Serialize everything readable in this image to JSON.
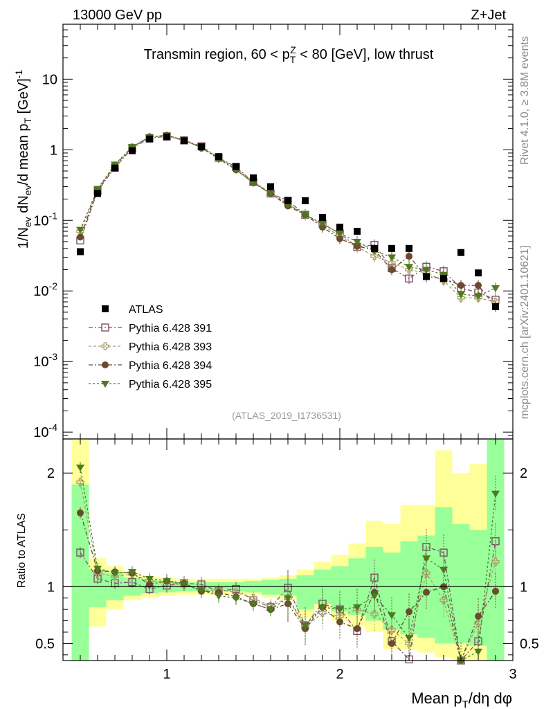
{
  "header": {
    "left": "13000 GeV pp",
    "right": "Z+Jet"
  },
  "side": {
    "rivet": "Rivet 4.1.0, ≥ 3.8M events",
    "mcplots": "mcplots.cern.ch [arXiv:2401.10621]"
  },
  "chart_data": {
    "type": "scatter",
    "title": "Transmin region, 60 < p_T^Z < 80 [GeV], low thrust",
    "analysis_tag": "(ATLAS_2019_I1736531)",
    "xlabel": "Mean p_T/dη dφ",
    "ylabel": "1/N_ev dN_ev/d mean p_T [GeV]^-1",
    "ratio_ylabel": "Ratio to ATLAS",
    "xlim": [
      0.4,
      3.0
    ],
    "ylim_log": [
      8e-05,
      60
    ],
    "ratio_ylim": [
      0.35,
      2.3
    ],
    "x_ticks": [
      "1",
      "2",
      "3"
    ],
    "y_ticks": [
      "10^-4",
      "10^-3",
      "10^-2",
      "10^-1",
      "1",
      "10"
    ],
    "ratio_ticks": [
      "0.5",
      "1",
      "2"
    ],
    "x": [
      0.5,
      0.6,
      0.7,
      0.8,
      0.9,
      1.0,
      1.1,
      1.2,
      1.3,
      1.4,
      1.5,
      1.6,
      1.7,
      1.8,
      1.9,
      2.0,
      2.1,
      2.2,
      2.3,
      2.4,
      2.5,
      2.6,
      2.7,
      2.8,
      2.9
    ],
    "data": {
      "name": "ATLAS",
      "values": [
        0.036,
        0.24,
        0.55,
        0.97,
        1.42,
        1.52,
        1.34,
        1.1,
        0.8,
        0.58,
        0.4,
        0.3,
        0.19,
        0.19,
        0.11,
        0.08,
        0.07,
        0.04,
        0.04,
        0.04,
        0.016,
        0.015,
        0.035,
        0.018,
        0.006
      ]
    },
    "series": [
      {
        "name": "Pythia 6.428 391",
        "color": "#7d4f6a",
        "marker": "open-square",
        "values": [
          0.052,
          0.26,
          0.56,
          1.05,
          1.45,
          1.55,
          1.36,
          1.12,
          0.77,
          0.57,
          0.35,
          0.24,
          0.19,
          0.12,
          0.09,
          0.065,
          0.042,
          0.045,
          0.021,
          0.015,
          0.022,
          0.019,
          0.011,
          0.0095,
          0.0075
        ]
      },
      {
        "name": "Pythia 6.428 393",
        "color": "#a9a06a",
        "marker": "open-cross",
        "values": [
          0.07,
          0.27,
          0.6,
          1.08,
          1.5,
          1.58,
          1.37,
          1.07,
          0.78,
          0.55,
          0.35,
          0.25,
          0.17,
          0.12,
          0.085,
          0.06,
          0.042,
          0.031,
          0.025,
          0.02,
          0.018,
          0.014,
          0.008,
          0.008,
          0.007
        ]
      },
      {
        "name": "Pythia 6.428 394",
        "color": "#6b4a2f",
        "marker": "filled-circle",
        "values": [
          0.058,
          0.27,
          0.6,
          1.09,
          1.53,
          1.6,
          1.38,
          1.06,
          0.76,
          0.52,
          0.34,
          0.24,
          0.16,
          0.12,
          0.08,
          0.055,
          0.043,
          0.038,
          0.02,
          0.031,
          0.016,
          0.015,
          0.012,
          0.012,
          0.006
        ]
      },
      {
        "name": "Pythia 6.428 395",
        "color": "#4d7a1e",
        "marker": "filled-triangle-down",
        "values": [
          0.074,
          0.28,
          0.62,
          1.1,
          1.52,
          1.6,
          1.37,
          1.07,
          0.74,
          0.52,
          0.34,
          0.24,
          0.17,
          0.12,
          0.09,
          0.065,
          0.05,
          0.037,
          0.03,
          0.022,
          0.02,
          0.017,
          0.009,
          0.0085,
          0.011
        ]
      }
    ],
    "ratio": {
      "x": [
        0.5,
        0.6,
        0.7,
        0.8,
        0.9,
        1.0,
        1.1,
        1.2,
        1.3,
        1.4,
        1.5,
        1.6,
        1.7,
        1.8,
        1.9,
        2.0,
        2.1,
        2.2,
        2.3,
        2.4,
        2.5,
        2.6,
        2.7,
        2.8,
        2.9
      ],
      "band_edges": [
        0.45,
        0.55,
        0.65,
        0.75,
        0.85,
        0.95,
        1.05,
        1.15,
        1.25,
        1.35,
        1.45,
        1.55,
        1.65,
        1.75,
        1.85,
        1.95,
        2.05,
        2.15,
        2.25,
        2.35,
        2.45,
        2.55,
        2.65,
        2.75,
        2.85,
        2.95
      ],
      "yellow_lo": [
        0.3,
        0.65,
        0.8,
        0.88,
        0.9,
        0.92,
        0.93,
        0.93,
        0.93,
        0.93,
        0.93,
        0.9,
        0.88,
        0.72,
        0.8,
        0.7,
        0.65,
        0.6,
        0.45,
        0.45,
        0.42,
        0.38,
        0.3,
        0.3,
        0.3
      ],
      "yellow_hi": [
        2.3,
        1.25,
        1.18,
        1.12,
        1.09,
        1.08,
        1.07,
        1.07,
        1.07,
        1.07,
        1.07,
        1.08,
        1.1,
        1.15,
        1.22,
        1.28,
        1.38,
        1.58,
        1.55,
        1.72,
        1.72,
        2.2,
        2.0,
        2.08,
        2.3
      ],
      "green_lo": [
        0.3,
        0.82,
        0.88,
        0.92,
        0.94,
        0.95,
        0.96,
        0.96,
        0.96,
        0.96,
        0.95,
        0.93,
        0.92,
        0.8,
        0.85,
        0.78,
        0.75,
        0.7,
        0.62,
        0.58,
        0.55,
        0.5,
        0.5,
        0.48,
        0.3
      ],
      "green_hi": [
        1.9,
        1.15,
        1.12,
        1.08,
        1.06,
        1.05,
        1.04,
        1.04,
        1.04,
        1.04,
        1.05,
        1.06,
        1.07,
        1.1,
        1.15,
        1.18,
        1.25,
        1.35,
        1.3,
        1.4,
        1.45,
        1.7,
        1.55,
        1.5,
        2.3
      ],
      "series": [
        {
          "name": "Pythia 6.428 391",
          "values": [
            1.3,
            1.07,
            1.03,
            1.04,
            0.98,
            1.01,
            1.03,
            1.02,
            0.96,
            0.98,
            0.88,
            0.82,
            0.99,
            0.66,
            0.85,
            0.8,
            0.61,
            1.08,
            0.52,
            0.36,
            1.35,
            1.3,
            0.32,
            0.52,
            1.4
          ]
        },
        {
          "name": "Pythia 6.428 393",
          "values": [
            1.92,
            1.12,
            1.09,
            1.11,
            1.05,
            1.04,
            1.02,
            0.97,
            0.97,
            0.95,
            0.9,
            0.83,
            0.9,
            0.64,
            0.77,
            0.74,
            0.8,
            0.76,
            0.62,
            0.5,
            1.12,
            0.88,
            0.32,
            0.68,
            1.22
          ]
        },
        {
          "name": "Pythia 6.428 394",
          "values": [
            1.65,
            1.14,
            1.13,
            1.12,
            1.02,
            1.05,
            1.03,
            0.96,
            0.95,
            0.91,
            0.85,
            0.8,
            0.85,
            0.63,
            0.82,
            0.69,
            0.63,
            0.95,
            0.5,
            0.78,
            0.95,
            1.0,
            0.32,
            0.74,
            0.96
          ]
        },
        {
          "name": "Pythia 6.428 395",
          "values": [
            2.05,
            1.16,
            1.12,
            1.13,
            1.07,
            1.05,
            1.02,
            0.97,
            0.92,
            0.9,
            0.85,
            0.8,
            0.9,
            0.66,
            0.82,
            0.8,
            0.82,
            0.92,
            0.75,
            0.55,
            1.25,
            1.15,
            0.32,
            0.43,
            1.82
          ]
        }
      ]
    },
    "legend_position": "lower-left"
  }
}
